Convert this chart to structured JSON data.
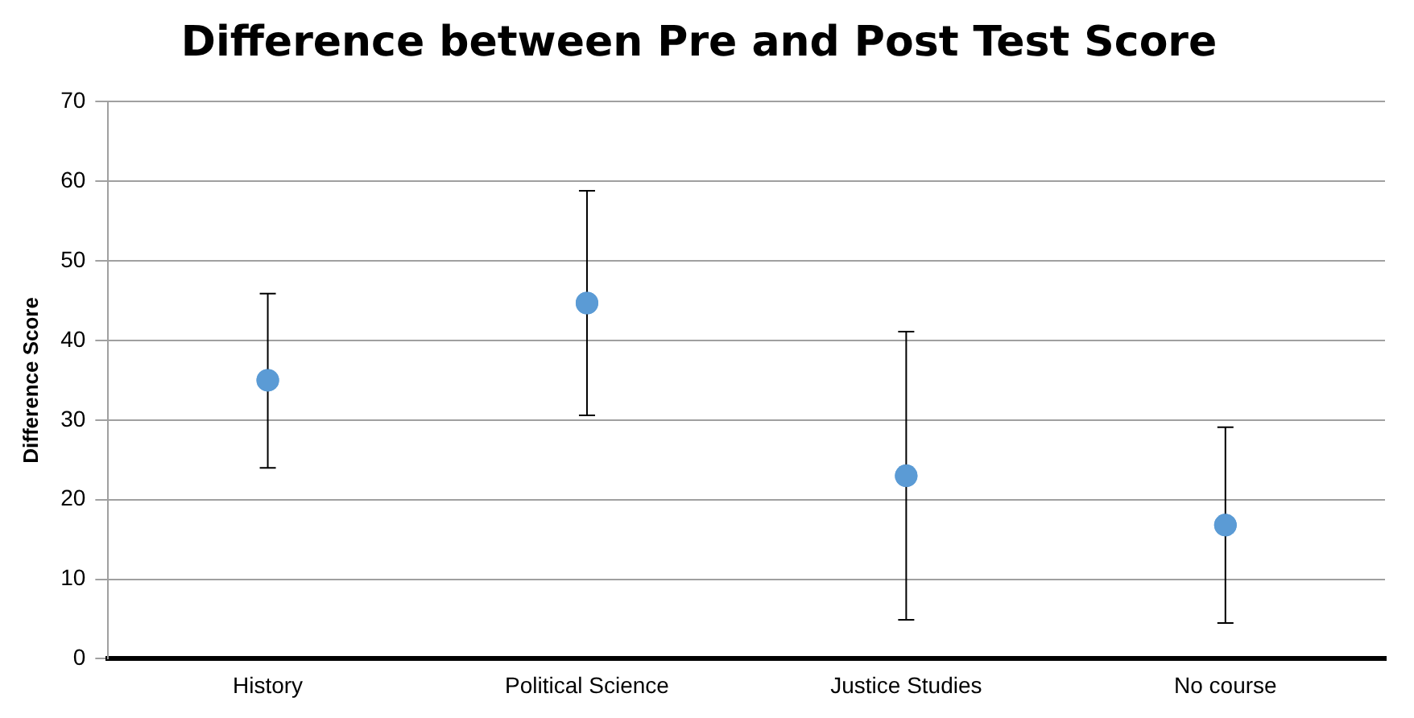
{
  "chart_data": {
    "type": "scatter",
    "title": "Difference between Pre and Post Test Score",
    "ylabel": "Difference Score",
    "categories": [
      "History",
      "Political Science",
      "Justice Studies",
      "No course"
    ],
    "series": [
      {
        "color": "#5b9bd5",
        "values": [
          35,
          44.7,
          23,
          16.8
        ],
        "errors": [
          [
            24,
            45.9
          ],
          [
            30.6,
            58.8
          ],
          [
            4.9,
            41.1
          ],
          [
            4.5,
            29.1
          ]
        ]
      }
    ],
    "ylim": [
      0,
      70
    ],
    "yticks": [
      0,
      10,
      20,
      30,
      40,
      50,
      60,
      70
    ],
    "grid": "y",
    "legend": false,
    "marker": "circle"
  }
}
